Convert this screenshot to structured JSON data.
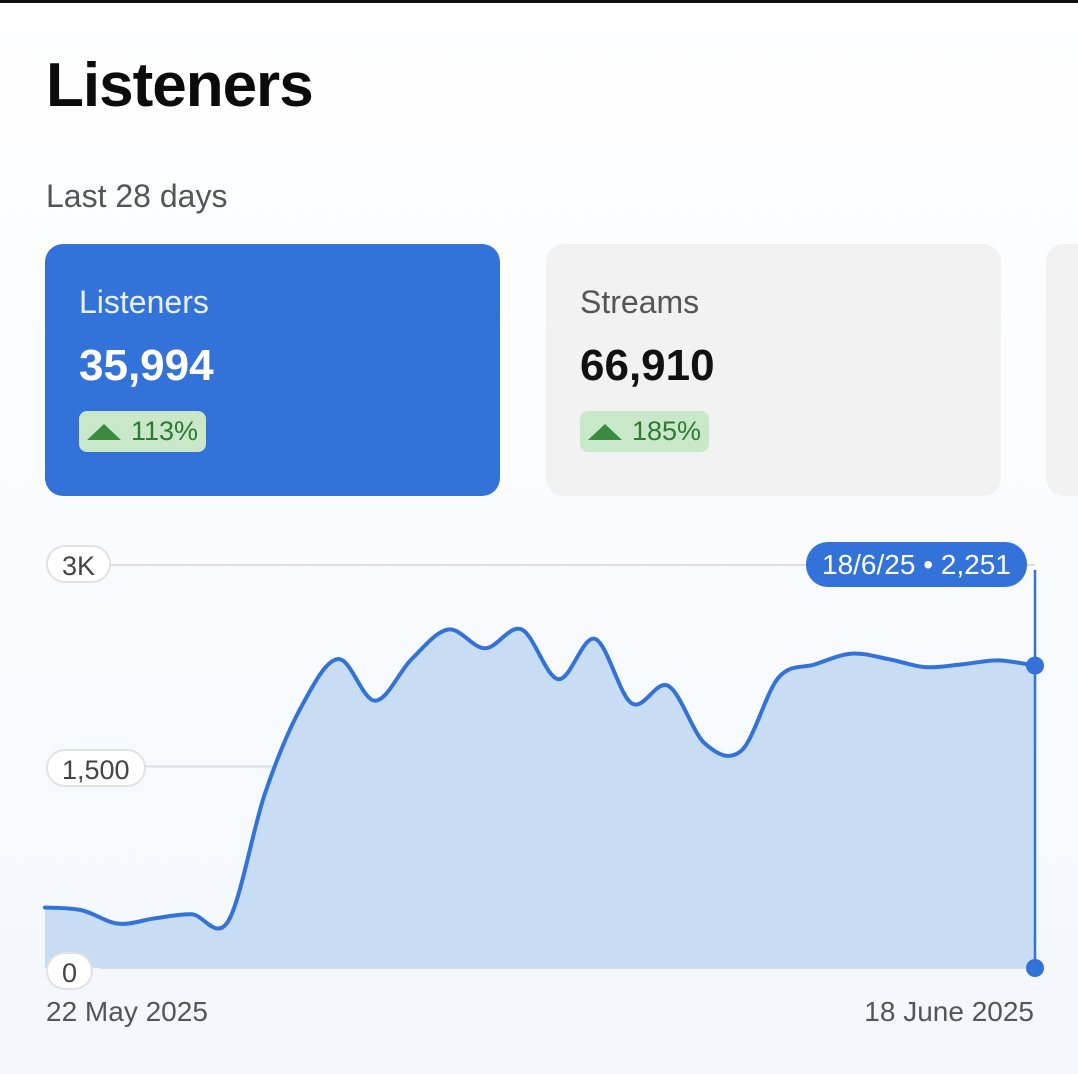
{
  "page": {
    "title": "Listeners",
    "period": "Last 28 days"
  },
  "cards": [
    {
      "label": "Listeners",
      "value": "35,994",
      "change": "113%",
      "trend": "up",
      "active": true
    },
    {
      "label": "Streams",
      "value": "66,910",
      "change": "185%",
      "trend": "up",
      "active": false
    }
  ],
  "colors": {
    "accent": "#3373d9",
    "badge_bg": "#c9e7c9",
    "badge_fg": "#2f7a34",
    "area": "#c8dcf4"
  },
  "chart_data": {
    "type": "area",
    "title": "Listeners",
    "x_start_label": "22 May 2025",
    "x_end_label": "18 June 2025",
    "y_ticks": [
      "3K",
      "1,500",
      "0"
    ],
    "ylim": [
      0,
      3000
    ],
    "values": [
      450,
      430,
      330,
      370,
      400,
      350,
      1300,
      1950,
      2300,
      1990,
      2300,
      2520,
      2380,
      2520,
      2150,
      2450,
      1970,
      2100,
      1670,
      1620,
      2160,
      2260,
      2340,
      2300,
      2240,
      2260,
      2290,
      2251
    ],
    "highlight": {
      "label": "18/6/25 • 2,251",
      "date": "18/6/25",
      "value": 2251
    }
  }
}
